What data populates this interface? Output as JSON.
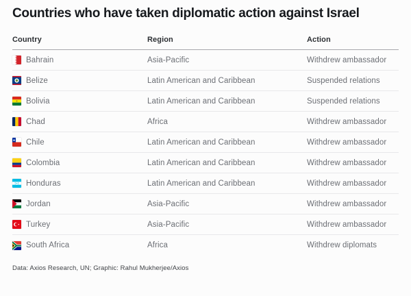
{
  "page": {
    "title": "Countries who have taken diplomatic action against Israel"
  },
  "table": {
    "columns": [
      {
        "key": "country",
        "label": "Country"
      },
      {
        "key": "region",
        "label": "Region"
      },
      {
        "key": "action",
        "label": "Action"
      }
    ],
    "rows": [
      {
        "country": "Bahrain",
        "flag_icon": "bahrain-flag",
        "region": "Asia-Pacific",
        "action": "Withdrew ambassador"
      },
      {
        "country": "Belize",
        "flag_icon": "belize-flag",
        "region": "Latin American and Caribbean",
        "action": "Suspended relations"
      },
      {
        "country": "Bolivia",
        "flag_icon": "bolivia-flag",
        "region": "Latin American and Caribbean",
        "action": "Suspended relations"
      },
      {
        "country": "Chad",
        "flag_icon": "chad-flag",
        "region": "Africa",
        "action": "Withdrew ambassador"
      },
      {
        "country": "Chile",
        "flag_icon": "chile-flag",
        "region": "Latin American and Caribbean",
        "action": "Withdrew ambassador"
      },
      {
        "country": "Colombia",
        "flag_icon": "colombia-flag",
        "region": "Latin American and Caribbean",
        "action": "Withdrew ambassador"
      },
      {
        "country": "Honduras",
        "flag_icon": "honduras-flag",
        "region": "Latin American and Caribbean",
        "action": "Withdrew ambassador"
      },
      {
        "country": "Jordan",
        "flag_icon": "jordan-flag",
        "region": "Asia-Pacific",
        "action": "Withdrew ambassador"
      },
      {
        "country": "Turkey",
        "flag_icon": "turkey-flag",
        "region": "Asia-Pacific",
        "action": "Withdrew ambassador"
      },
      {
        "country": "South Africa",
        "flag_icon": "south-africa-flag",
        "region": "Africa",
        "action": "Withdrew diplomats"
      }
    ]
  },
  "footer": {
    "credit": "Data: Axios Research, UN; Graphic: Rahul Mukherjee/Axios"
  },
  "colors": {
    "title_text": "#16191d",
    "header_text": "#2c2f33",
    "row_text": "#6b6e74",
    "header_border": "#a8a8ac",
    "row_border": "#e8e8ea",
    "footer_text": "#3f4246",
    "page_background": "#fcfcfc"
  },
  "chart_data": {
    "type": "table",
    "title": "Countries who have taken diplomatic action against Israel",
    "columns": [
      "Country",
      "Region",
      "Action"
    ],
    "rows": [
      [
        "Bahrain",
        "Asia-Pacific",
        "Withdrew ambassador"
      ],
      [
        "Belize",
        "Latin American and Caribbean",
        "Suspended relations"
      ],
      [
        "Bolivia",
        "Latin American and Caribbean",
        "Suspended relations"
      ],
      [
        "Chad",
        "Africa",
        "Withdrew ambassador"
      ],
      [
        "Chile",
        "Latin American and Caribbean",
        "Withdrew ambassador"
      ],
      [
        "Colombia",
        "Latin American and Caribbean",
        "Withdrew ambassador"
      ],
      [
        "Honduras",
        "Latin American and Caribbean",
        "Withdrew ambassador"
      ],
      [
        "Jordan",
        "Asia-Pacific",
        "Withdrew ambassador"
      ],
      [
        "Turkey",
        "Asia-Pacific",
        "Withdrew ambassador"
      ],
      [
        "South Africa",
        "Africa",
        "Withdrew diplomats"
      ]
    ],
    "source": "Data: Axios Research, UN; Graphic: Rahul Mukherjee/Axios"
  }
}
